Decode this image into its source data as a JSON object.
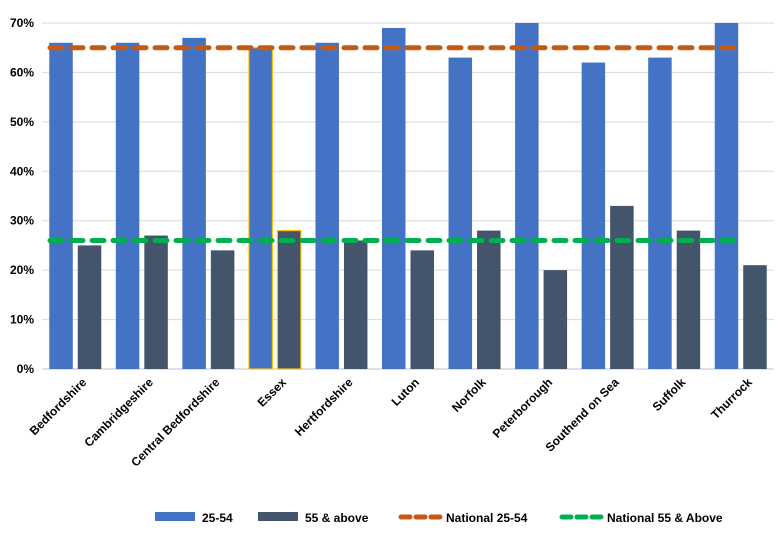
{
  "chart_data": {
    "type": "bar",
    "title": "",
    "xlabel": "",
    "ylabel": "",
    "ylim": [
      0,
      70
    ],
    "yticks": [
      "0%",
      "10%",
      "20%",
      "30%",
      "40%",
      "50%",
      "60%",
      "70%"
    ],
    "ytick_values": [
      0,
      10,
      20,
      30,
      40,
      50,
      60,
      70
    ],
    "grid": true,
    "legend_position": "bottom",
    "categories": [
      "Bedfordshire",
      "Cambridgeshire",
      "Central Bedfordshire",
      "Essex",
      "Hertfordshire",
      "Luton",
      "Norfolk",
      "Peterborough",
      "Southend on Sea",
      "Suffolk",
      "Thurrock"
    ],
    "series": [
      {
        "name": "25-54",
        "kind": "bar",
        "color": "#4472C4",
        "values": [
          66,
          66,
          67,
          65,
          66,
          69,
          63,
          70,
          62,
          63,
          70
        ]
      },
      {
        "name": "55 & above",
        "kind": "bar",
        "color": "#44546A",
        "values": [
          25,
          27,
          24,
          28,
          26,
          24,
          28,
          20,
          33,
          28,
          21
        ]
      },
      {
        "name": "National 25-54",
        "kind": "reference-line",
        "color": "#C55A11",
        "value": 65
      },
      {
        "name": "National 55 & Above",
        "kind": "reference-line",
        "color": "#00B050",
        "value": 26
      }
    ],
    "highlight_category": "Essex",
    "highlight_color": "#FFC000"
  }
}
